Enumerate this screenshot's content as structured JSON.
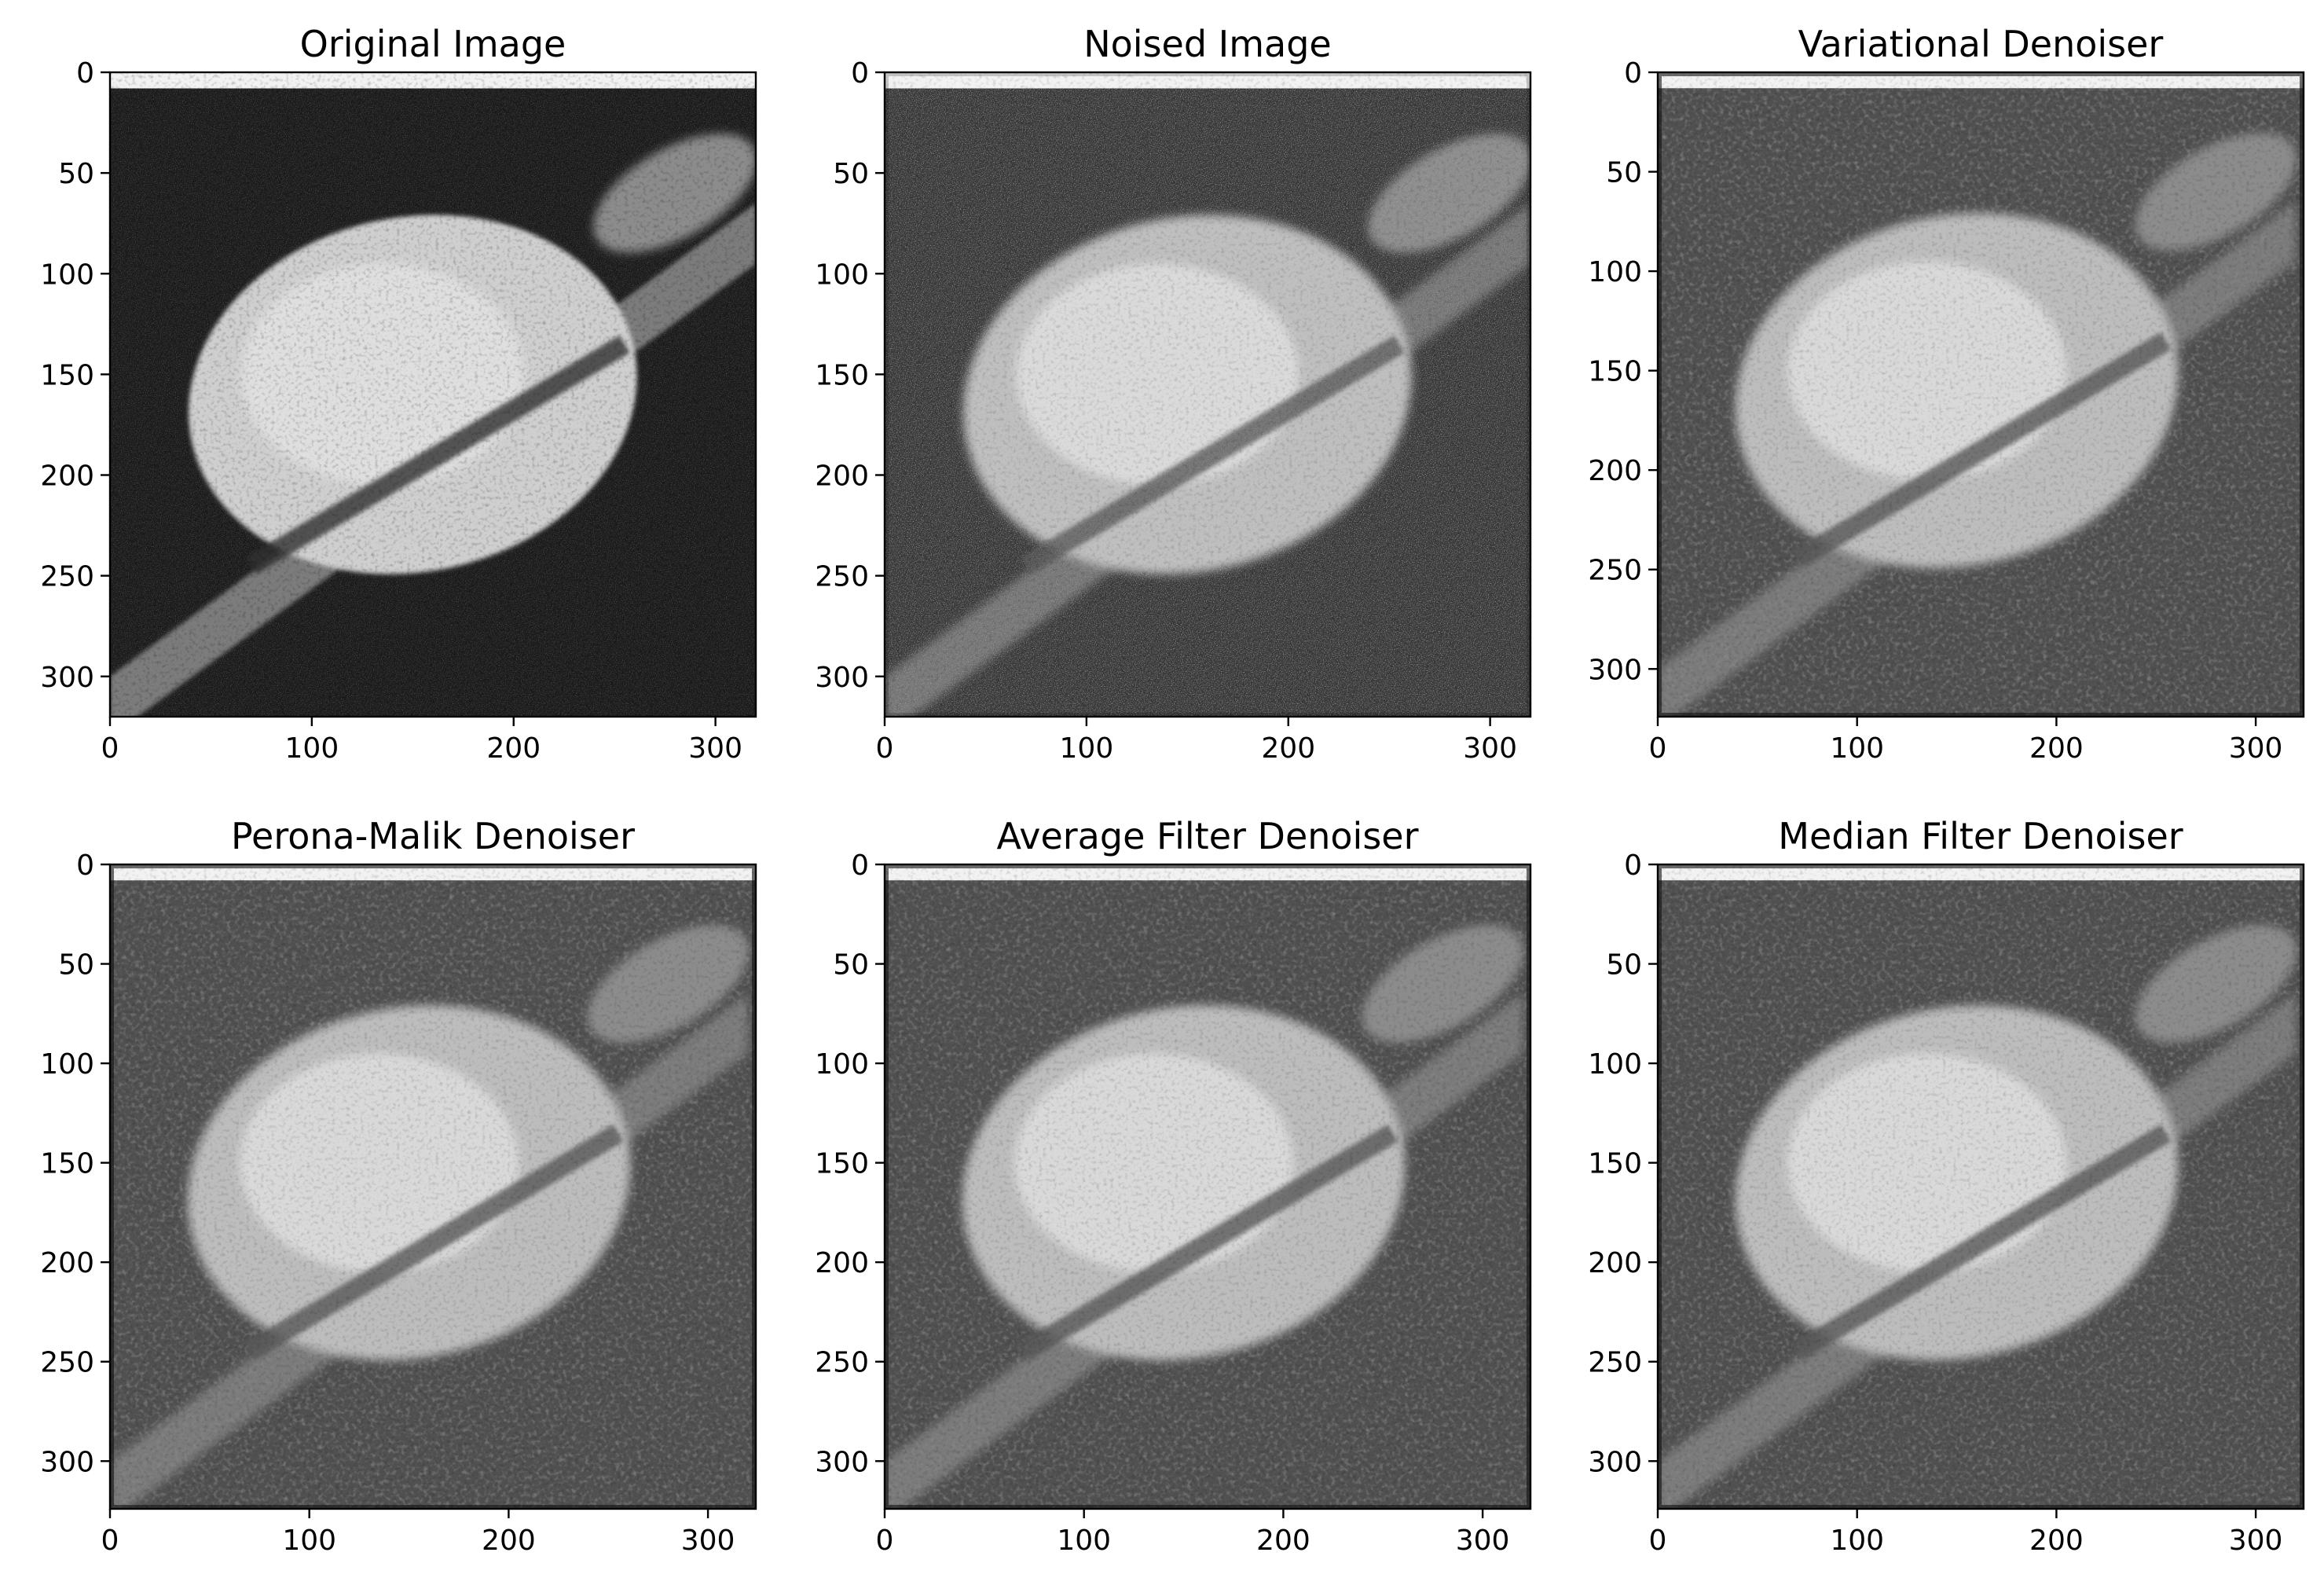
{
  "chart_data": [
    {
      "type": "image",
      "title": "Original Image",
      "image": "saturn-original",
      "xlim": [
        0,
        320
      ],
      "ylim": [
        320,
        0
      ],
      "xticks": [
        0,
        100,
        200,
        300
      ],
      "yticks": [
        0,
        50,
        100,
        150,
        200,
        250,
        300
      ],
      "tick_labels_x": [
        "0",
        "100",
        "200",
        "300"
      ],
      "tick_labels_y": [
        "0",
        "50",
        "100",
        "150",
        "200",
        "250",
        "300"
      ]
    },
    {
      "type": "image",
      "title": "Noised Image",
      "image": "saturn-noised",
      "xlim": [
        0,
        320
      ],
      "ylim": [
        320,
        0
      ],
      "xticks": [
        0,
        100,
        200,
        300
      ],
      "yticks": [
        0,
        50,
        100,
        150,
        200,
        250,
        300
      ],
      "tick_labels_x": [
        "0",
        "100",
        "200",
        "300"
      ],
      "tick_labels_y": [
        "0",
        "50",
        "100",
        "150",
        "200",
        "250",
        "300"
      ]
    },
    {
      "type": "image",
      "title": "Variational Denoiser",
      "image": "saturn-variational",
      "xlim": [
        0,
        324
      ],
      "ylim": [
        324,
        0
      ],
      "xticks": [
        0,
        100,
        200,
        300
      ],
      "yticks": [
        0,
        50,
        100,
        150,
        200,
        250,
        300
      ],
      "tick_labels_x": [
        "0",
        "100",
        "200",
        "300"
      ],
      "tick_labels_y": [
        "0",
        "50",
        "100",
        "150",
        "200",
        "250",
        "300"
      ]
    },
    {
      "type": "image",
      "title": "Perona-Malik Denoiser",
      "image": "saturn-perona-malik",
      "xlim": [
        0,
        324
      ],
      "ylim": [
        324,
        0
      ],
      "xticks": [
        0,
        100,
        200,
        300
      ],
      "yticks": [
        0,
        50,
        100,
        150,
        200,
        250,
        300
      ],
      "tick_labels_x": [
        "0",
        "100",
        "200",
        "300"
      ],
      "tick_labels_y": [
        "0",
        "50",
        "100",
        "150",
        "200",
        "250",
        "300"
      ]
    },
    {
      "type": "image",
      "title": "Average Filter Denoiser",
      "image": "saturn-average",
      "xlim": [
        0,
        324
      ],
      "ylim": [
        324,
        0
      ],
      "xticks": [
        0,
        100,
        200,
        300
      ],
      "yticks": [
        0,
        50,
        100,
        150,
        200,
        250,
        300
      ],
      "tick_labels_x": [
        "0",
        "100",
        "200",
        "300"
      ],
      "tick_labels_y": [
        "0",
        "50",
        "100",
        "150",
        "200",
        "250",
        "300"
      ]
    },
    {
      "type": "image",
      "title": "Median Filter Denoiser",
      "image": "saturn-median",
      "xlim": [
        0,
        324
      ],
      "ylim": [
        324,
        0
      ],
      "xticks": [
        0,
        100,
        200,
        300
      ],
      "yticks": [
        0,
        50,
        100,
        150,
        200,
        250,
        300
      ],
      "tick_labels_x": [
        "0",
        "100",
        "200",
        "300"
      ],
      "tick_labels_y": [
        "0",
        "50",
        "100",
        "150",
        "200",
        "250",
        "300"
      ]
    }
  ],
  "colors": {
    "background": "#ffffff",
    "image_dark": "#1c1c1c",
    "image_gray": "#555555",
    "planet_light": "#d8d8d8"
  }
}
